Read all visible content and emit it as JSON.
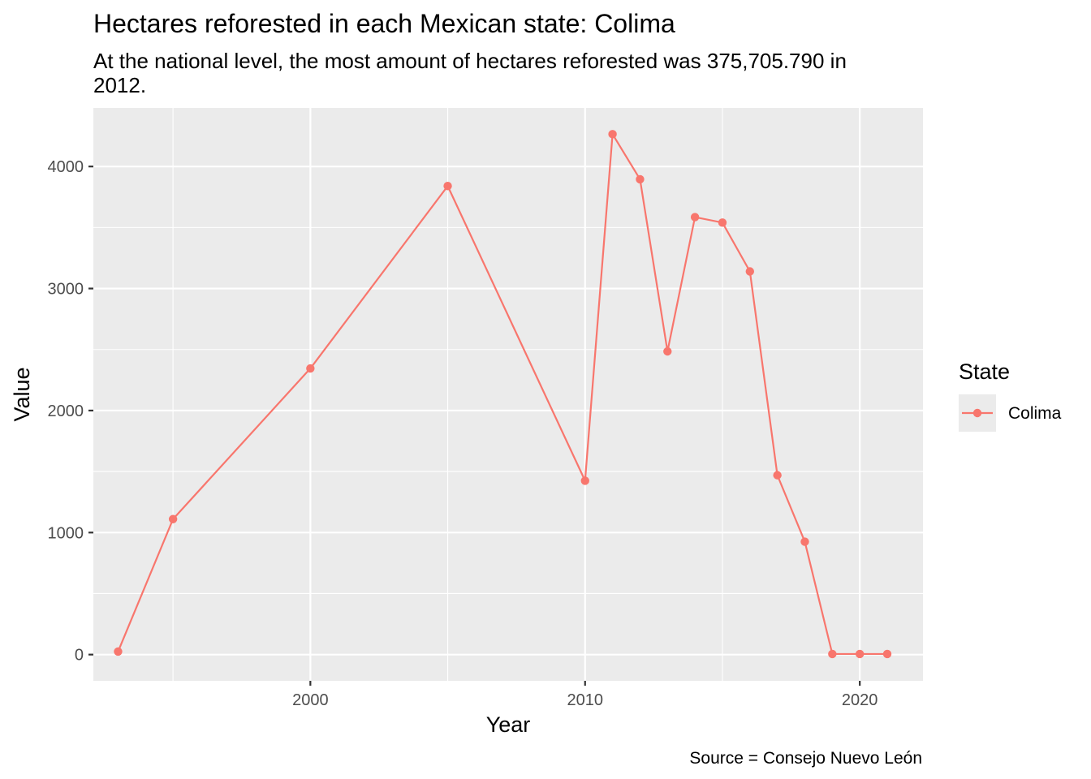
{
  "chart_data": {
    "type": "line",
    "title": "Hectares reforested in each Mexican state: Colima",
    "subtitle_lines": [
      "At the national level, the most amount of hectares reforested was 375,705.790 in",
      "2012."
    ],
    "xlabel": "Year",
    "ylabel": "Value",
    "caption": "Source = Consejo Nuevo León",
    "xlim": [
      1992.1,
      2022.3
    ],
    "ylim": [
      -215,
      4480
    ],
    "x_ticks": [
      2000,
      2010,
      2020
    ],
    "x_tick_labels": [
      "2000",
      "2010",
      "2020"
    ],
    "x_minor_ticks": [
      1995,
      2005,
      2015
    ],
    "y_ticks": [
      0,
      1000,
      2000,
      3000,
      4000
    ],
    "y_tick_labels": [
      "0",
      "1000",
      "2000",
      "3000",
      "4000"
    ],
    "y_minor_ticks": [
      500,
      1500,
      2500,
      3500
    ],
    "grid": true,
    "legend": {
      "title": "State",
      "position": "right"
    },
    "series": [
      {
        "name": "Colima",
        "color": "#F8766D",
        "x": [
          1993,
          1995,
          2000,
          2005,
          2010,
          2011,
          2012,
          2013,
          2014,
          2015,
          2016,
          2017,
          2018,
          2019,
          2020,
          2021
        ],
        "y": [
          25,
          1110,
          2345,
          3840,
          1425,
          4265,
          3895,
          2485,
          3585,
          3540,
          3140,
          1470,
          925,
          5,
          5,
          5
        ]
      }
    ]
  }
}
